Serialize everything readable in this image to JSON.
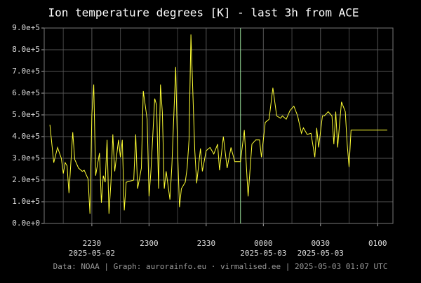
{
  "chart_data": {
    "type": "line",
    "title": "Ion temperature degrees [K] - last 3h from ACE",
    "footer": "Data: NOAA | Graph: aurorainfo.eu · virmalised.ee | 2025-05-03 01:07 UTC",
    "color": "#ffff33",
    "grid": true,
    "x": [
      "2025-05-02 22:08",
      "2025-05-02 22:10",
      "2025-05-02 22:12",
      "2025-05-02 22:14",
      "2025-05-02 22:15",
      "2025-05-02 22:16",
      "2025-05-02 22:17",
      "2025-05-02 22:18",
      "2025-05-02 22:20",
      "2025-05-02 22:21",
      "2025-05-02 22:23",
      "2025-05-02 22:25",
      "2025-05-02 22:26",
      "2025-05-02 22:28",
      "2025-05-02 22:29",
      "2025-05-02 22:30",
      "2025-05-02 22:31",
      "2025-05-02 22:32",
      "2025-05-02 22:34",
      "2025-05-02 22:35",
      "2025-05-02 22:36",
      "2025-05-02 22:37",
      "2025-05-02 22:38",
      "2025-05-02 22:39",
      "2025-05-02 22:40",
      "2025-05-02 22:41",
      "2025-05-02 22:42",
      "2025-05-02 22:44",
      "2025-05-02 22:45",
      "2025-05-02 22:46",
      "2025-05-02 22:47",
      "2025-05-02 22:48",
      "2025-05-02 22:50",
      "2025-05-02 22:52",
      "2025-05-02 22:53",
      "2025-05-02 22:54",
      "2025-05-02 22:56",
      "2025-05-02 22:57",
      "2025-05-02 22:59",
      "2025-05-02 23:00",
      "2025-05-02 23:01",
      "2025-05-02 23:03",
      "2025-05-02 23:04",
      "2025-05-02 23:05",
      "2025-05-02 23:06",
      "2025-05-02 23:07",
      "2025-05-02 23:08",
      "2025-05-02 23:09",
      "2025-05-02 23:11",
      "2025-05-02 23:12",
      "2025-05-02 23:14",
      "2025-05-02 23:15",
      "2025-05-02 23:16",
      "2025-05-02 23:17",
      "2025-05-02 23:19",
      "2025-05-02 23:20",
      "2025-05-02 23:21",
      "2025-05-02 23:22",
      "2025-05-02 23:24",
      "2025-05-02 23:25",
      "2025-05-02 23:27",
      "2025-05-02 23:28",
      "2025-05-02 23:30",
      "2025-05-02 23:32",
      "2025-05-02 23:34",
      "2025-05-02 23:36",
      "2025-05-02 23:37",
      "2025-05-02 23:39",
      "2025-05-02 23:41",
      "2025-05-02 23:43",
      "2025-05-02 23:45",
      "2025-05-02 23:48",
      "2025-05-02 23:50",
      "2025-05-02 23:52",
      "2025-05-02 23:54",
      "2025-05-02 23:56",
      "2025-05-02 23:58",
      "2025-05-02 23:59",
      "2025-05-03 00:01",
      "2025-05-03 00:03",
      "2025-05-03 00:05",
      "2025-05-03 00:07",
      "2025-05-03 00:09",
      "2025-05-03 00:10",
      "2025-05-03 00:12",
      "2025-05-03 00:14",
      "2025-05-03 00:16",
      "2025-05-03 00:18",
      "2025-05-03 00:20",
      "2025-05-03 00:21",
      "2025-05-03 00:23",
      "2025-05-03 00:25",
      "2025-05-03 00:27",
      "2025-05-03 00:28",
      "2025-05-03 00:29",
      "2025-05-03 00:31",
      "2025-05-03 00:32",
      "2025-05-03 00:34",
      "2025-05-03 00:36",
      "2025-05-03 00:37",
      "2025-05-03 00:38",
      "2025-05-03 00:39",
      "2025-05-03 00:40",
      "2025-05-03 00:41",
      "2025-05-03 00:43",
      "2025-05-03 00:44",
      "2025-05-03 00:45",
      "2025-05-03 00:46",
      "2025-05-03 01:05"
    ],
    "values": [
      455000,
      280000,
      350000,
      300000,
      230000,
      280000,
      265000,
      140000,
      420000,
      295000,
      255000,
      240000,
      245000,
      205000,
      45000,
      500000,
      640000,
      220000,
      325000,
      95000,
      220000,
      190000,
      385000,
      45000,
      190000,
      410000,
      240000,
      385000,
      305000,
      385000,
      60000,
      190000,
      195000,
      200000,
      410000,
      160000,
      255000,
      610000,
      480000,
      125000,
      240000,
      575000,
      545000,
      160000,
      640000,
      510000,
      160000,
      240000,
      110000,
      270000,
      720000,
      335000,
      75000,
      160000,
      190000,
      255000,
      385000,
      870000,
      335000,
      185000,
      345000,
      240000,
      335000,
      350000,
      320000,
      365000,
      245000,
      400000,
      255000,
      350000,
      285000,
      285000,
      430000,
      125000,
      365000,
      385000,
      385000,
      305000,
      465000,
      480000,
      625000,
      495000,
      485000,
      495000,
      480000,
      520000,
      540000,
      495000,
      415000,
      440000,
      410000,
      415000,
      305000,
      440000,
      350000,
      495000,
      495000,
      515000,
      495000,
      365000,
      515000,
      350000,
      460000,
      560000,
      515000,
      365000,
      260000,
      430000,
      430000
    ],
    "markers": [
      {
        "x": "2025-05-02 23:48",
        "color": "#9be39b"
      }
    ],
    "xlim": [
      "2025-05-02 22:05",
      "2025-05-03 01:08"
    ],
    "xticks": [
      {
        "value": "2025-05-02 22:30",
        "label": "2230",
        "sublabel": "2025-05-02"
      },
      {
        "value": "2025-05-02 23:00",
        "label": "2300"
      },
      {
        "value": "2025-05-02 23:30",
        "label": "2330"
      },
      {
        "value": "2025-05-03 00:00",
        "label": "0000",
        "sublabel": "2025-05-03"
      },
      {
        "value": "2025-05-03 00:30",
        "label": "0030",
        "sublabel": "2025-05-03"
      },
      {
        "value": "2025-05-03 01:00",
        "label": "0100"
      }
    ],
    "xminorticks": [
      "2025-05-02 22:15",
      "2025-05-02 22:45",
      "2025-05-02 23:15",
      "2025-05-02 23:45",
      "2025-05-03 00:15",
      "2025-05-03 00:45"
    ],
    "ylim": [
      0,
      900000
    ],
    "yticks": [
      {
        "value": 0,
        "label": "0.0e+0"
      },
      {
        "value": 100000,
        "label": "1.0e+5"
      },
      {
        "value": 200000,
        "label": "2.0e+5"
      },
      {
        "value": 300000,
        "label": "3.0e+5"
      },
      {
        "value": 400000,
        "label": "4.0e+5"
      },
      {
        "value": 500000,
        "label": "5.0e+5"
      },
      {
        "value": 600000,
        "label": "6.0e+5"
      },
      {
        "value": 700000,
        "label": "7.0e+5"
      },
      {
        "value": 800000,
        "label": "8.0e+5"
      },
      {
        "value": 900000,
        "label": "9.0e+5"
      }
    ]
  }
}
